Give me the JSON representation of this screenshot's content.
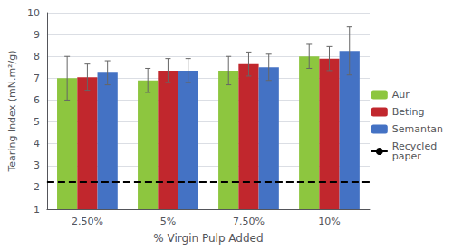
{
  "chart_data": {
    "type": "bar",
    "xlabel": "% Virgin Pulp Added",
    "ylabel": "Tearing Index (mN.m²/g)",
    "categories": [
      "2.50%",
      "5%",
      "7.50%",
      "10%"
    ],
    "series": [
      {
        "name": "Aur",
        "color": "#8DC63F",
        "values": [
          7.0,
          6.9,
          7.35,
          8.0
        ],
        "errors": [
          1.0,
          0.55,
          0.65,
          0.55
        ]
      },
      {
        "name": "Beting",
        "color": "#C1272D",
        "values": [
          7.05,
          7.35,
          7.65,
          7.9
        ],
        "errors": [
          0.6,
          0.55,
          0.55,
          0.55
        ]
      },
      {
        "name": "Semantan",
        "color": "#4472C4",
        "values": [
          7.25,
          7.35,
          7.5,
          8.25
        ],
        "errors": [
          0.55,
          0.55,
          0.6,
          1.1
        ]
      }
    ],
    "hlines": [
      {
        "name": "Recycled\npaper",
        "y": 2.25,
        "color": "#000000",
        "line_style": "dashed"
      }
    ],
    "ylim": [
      1,
      10
    ],
    "yticks": [
      1,
      2,
      3,
      4,
      5,
      6,
      7,
      8,
      9,
      10
    ],
    "grid": true,
    "legend": "right"
  }
}
